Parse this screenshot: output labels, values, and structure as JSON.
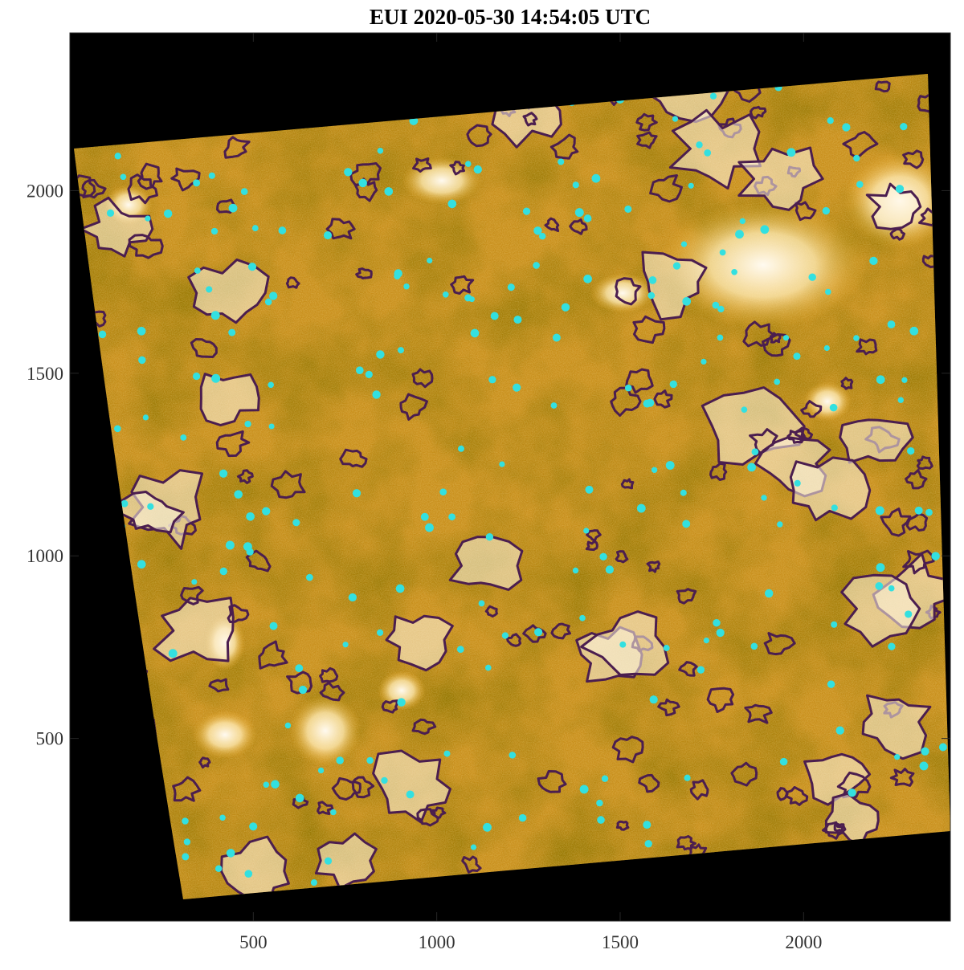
{
  "chart_data": {
    "type": "image",
    "title": "EUI 2020-05-30 14:54:05 UTC",
    "xlim": [
      0,
      2400
    ],
    "ylim": [
      0,
      2432
    ],
    "xticks": [
      500,
      1000,
      1500,
      2000
    ],
    "yticks": [
      500,
      1000,
      1500,
      2000
    ]
  }
}
